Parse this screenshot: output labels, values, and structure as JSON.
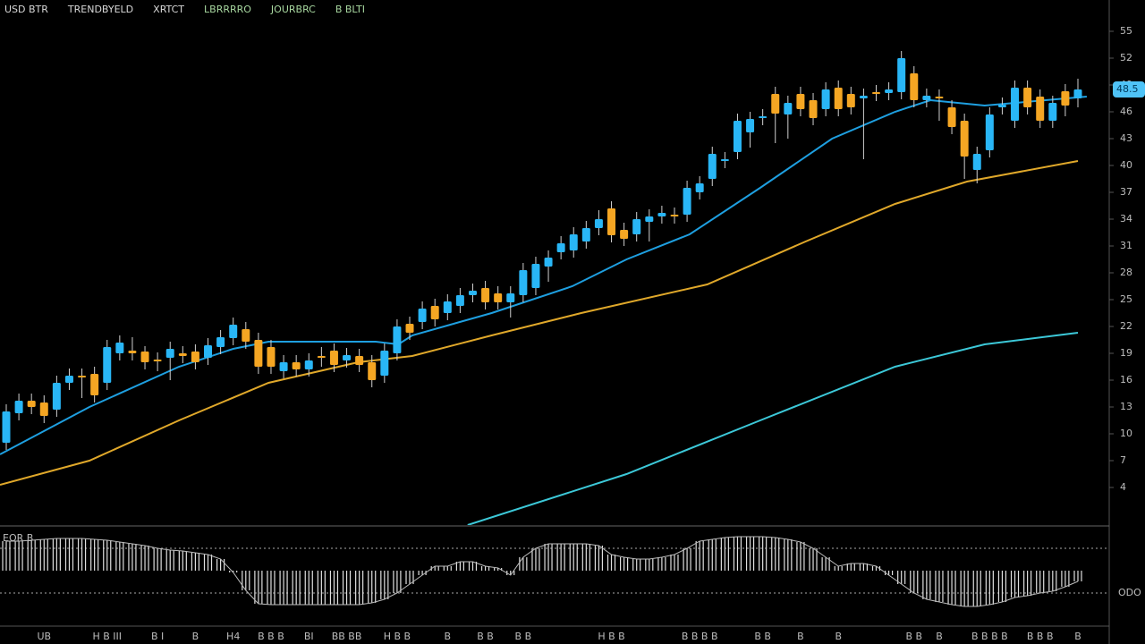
{
  "chart_data": {
    "type": "candlestick",
    "header": [
      {
        "text": "USD BTR",
        "color": "#d8d8d8"
      },
      {
        "text": "TRENDBYELD",
        "color": "#d8d8d8"
      },
      {
        "text": "XRTCT",
        "color": "#d8d8d8"
      },
      {
        "text": "LBRRRRO",
        "color": "#a8d8a0"
      },
      {
        "text": "JOURBRC",
        "color": "#a8d8a0"
      },
      {
        "text": "B BLTI",
        "color": "#a8d8a0"
      }
    ],
    "categories": [
      null,
      null,
      null,
      "UB",
      null,
      null,
      null,
      null,
      "H B III",
      null,
      null,
      null,
      "B I",
      null,
      null,
      "B",
      null,
      null,
      "H4",
      null,
      null,
      "B B B",
      null,
      null,
      "BI",
      null,
      null,
      "BB BB",
      null,
      null,
      null,
      "H B B",
      null,
      null,
      null,
      "B",
      null,
      null,
      "B B",
      null,
      null,
      "B B",
      null,
      null,
      null,
      null,
      null,
      null,
      "H B B",
      null,
      null,
      null,
      null,
      null,
      null,
      "B B B B",
      null,
      null,
      null,
      null,
      "B B",
      null,
      null,
      "B",
      null,
      null,
      "B",
      null,
      null,
      null,
      null,
      null,
      "B B",
      null,
      "B",
      null,
      null,
      null,
      "B B B B",
      null,
      null,
      null,
      "B B B",
      null,
      null,
      "B"
    ],
    "open": [
      9.0,
      12.3,
      13.7,
      13.5,
      12.7,
      15.7,
      16.5,
      16.7,
      15.7,
      19.0,
      19.3,
      19.2,
      18.3,
      18.5,
      19.0,
      19.2,
      18.5,
      19.7,
      20.7,
      21.7,
      20.5,
      19.7,
      17.0,
      18.0,
      17.2,
      18.7,
      19.3,
      18.2,
      18.7,
      18.0,
      16.5,
      19.0,
      22.3,
      22.5,
      24.3,
      23.5,
      24.3,
      25.5,
      26.3,
      25.7,
      24.7,
      25.5,
      26.3,
      28.7,
      30.3,
      30.5,
      31.5,
      33.0,
      35.2,
      32.8,
      32.3,
      33.7,
      34.3,
      34.5,
      34.5,
      37.0,
      38.5,
      40.5,
      41.5,
      43.7,
      45.3,
      48.0,
      45.7,
      48.0,
      47.3,
      46.3,
      48.7,
      48.0,
      47.5,
      48.2,
      48.1,
      48.2,
      50.3,
      47.3,
      47.7,
      46.5,
      45.0,
      39.5,
      41.7,
      46.5,
      45.0,
      48.7,
      47.7,
      45.0,
      48.3,
      47.5
    ],
    "high": [
      13.3,
      14.5,
      14.5,
      14.3,
      16.5,
      17.3,
      17.3,
      17.5,
      20.5,
      21.0,
      20.8,
      19.8,
      19.1,
      20.3,
      19.8,
      20.0,
      20.7,
      21.6,
      23.0,
      22.5,
      21.3,
      20.5,
      18.8,
      18.8,
      19.0,
      19.7,
      20.1,
      19.6,
      19.5,
      18.8,
      20.1,
      22.8,
      23.1,
      24.8,
      25.1,
      25.6,
      26.3,
      26.8,
      27.1,
      26.5,
      26.5,
      29.1,
      29.8,
      30.5,
      32.1,
      33.1,
      33.8,
      35.0,
      36.0,
      33.6,
      34.8,
      35.1,
      35.5,
      35.3,
      38.3,
      38.8,
      42.1,
      41.5,
      45.8,
      46.0,
      46.3,
      48.8,
      47.8,
      48.8,
      48.1,
      49.3,
      49.5,
      48.8,
      48.6,
      49.0,
      49.3,
      52.8,
      51.1,
      48.6,
      48.5,
      47.3,
      45.8,
      42.1,
      46.5,
      47.6,
      49.5,
      49.5,
      48.5,
      47.8,
      49.1,
      49.7
    ],
    "low": [
      8.2,
      11.5,
      12.2,
      11.2,
      11.9,
      14.9,
      14.0,
      13.5,
      14.9,
      18.2,
      18.2,
      17.2,
      17.0,
      16.0,
      17.9,
      17.2,
      17.7,
      18.9,
      19.9,
      19.5,
      16.7,
      16.7,
      16.2,
      16.4,
      16.4,
      17.5,
      16.9,
      17.4,
      16.9,
      15.2,
      15.7,
      18.2,
      20.5,
      21.7,
      22.0,
      22.7,
      23.5,
      24.7,
      23.9,
      23.9,
      23.0,
      24.7,
      25.5,
      27.0,
      29.5,
      29.7,
      30.7,
      32.2,
      31.4,
      31.0,
      31.5,
      31.5,
      33.5,
      33.5,
      33.7,
      36.2,
      37.7,
      39.7,
      40.7,
      42.0,
      44.5,
      42.5,
      43.0,
      45.5,
      44.5,
      45.5,
      45.5,
      45.7,
      40.7,
      47.2,
      47.3,
      47.4,
      46.5,
      46.5,
      45.0,
      43.5,
      38.5,
      38.0,
      40.9,
      45.7,
      44.2,
      45.7,
      44.2,
      44.2,
      45.5,
      46.5
    ],
    "close": [
      12.5,
      13.7,
      13.0,
      12.0,
      15.7,
      16.5,
      16.3,
      14.3,
      19.7,
      20.2,
      19.0,
      18.0,
      18.1,
      19.5,
      18.7,
      18.0,
      19.9,
      20.8,
      22.2,
      20.3,
      17.5,
      17.5,
      18.0,
      17.2,
      18.2,
      18.5,
      17.7,
      18.8,
      17.7,
      16.0,
      19.3,
      22.0,
      21.3,
      24.0,
      22.8,
      24.8,
      25.5,
      26.0,
      24.7,
      24.7,
      25.7,
      28.3,
      29.0,
      29.7,
      31.3,
      32.3,
      33.0,
      34.0,
      32.2,
      31.8,
      34.0,
      34.3,
      34.7,
      34.3,
      37.5,
      38.0,
      41.3,
      40.7,
      45.0,
      45.2,
      45.5,
      45.8,
      47.0,
      46.3,
      45.3,
      48.5,
      46.3,
      46.5,
      47.8,
      48.0,
      48.5,
      52.0,
      47.3,
      47.8,
      47.5,
      44.3,
      41.0,
      41.3,
      45.7,
      46.8,
      48.7,
      46.5,
      45.0,
      47.0,
      46.7,
      48.5
    ],
    "up_color": "#29b6f6",
    "down_color": "#f5a623",
    "overlays": [
      {
        "color": "#1e9fe0",
        "x": [
          -0.5,
          6.6,
          13.7,
          18.0,
          20.8,
          29.3,
          31.1,
          32.2,
          38.5,
          44.9,
          49.2,
          54.2,
          59.8,
          65.5,
          70.5,
          73.3,
          77.6,
          85.7
        ],
        "values": [
          7.7,
          13.0,
          17.5,
          19.5,
          20.3,
          20.3,
          20.0,
          21.0,
          23.5,
          26.5,
          29.5,
          32.3,
          37.5,
          43.0,
          46.0,
          47.3,
          46.7,
          47.7
        ]
      },
      {
        "color": "#e0a82a",
        "x": [
          -0.5,
          6.6,
          13.7,
          20.8,
          27.9,
          32.2,
          38.5,
          45.6,
          55.6,
          63.4,
          70.5,
          76.2,
          85.0
        ],
        "values": [
          4.3,
          7.0,
          11.5,
          15.7,
          18.0,
          18.7,
          21.0,
          23.5,
          26.7,
          31.5,
          35.7,
          38.2,
          40.5
        ]
      },
      {
        "color": "#3cc8d8",
        "x": [
          36.6,
          49.2,
          59.8,
          70.5,
          77.6,
          85.0
        ],
        "values": [
          -0.2,
          5.5,
          11.5,
          17.5,
          20.0,
          21.3
        ]
      }
    ],
    "ylim": [
      0,
      58.5
    ],
    "yticks": [
      4,
      7,
      10,
      13,
      16,
      19,
      22,
      25,
      28,
      31,
      34,
      37,
      40,
      43,
      46,
      49,
      52,
      55
    ],
    "last_price": 48.5,
    "indicator": {
      "type": "histogram",
      "label": "EOR B",
      "values": [
        3.3,
        3.3,
        3.4,
        3.5,
        3.6,
        3.6,
        3.6,
        3.5,
        3.4,
        3.2,
        3.0,
        2.8,
        2.5,
        2.3,
        2.2,
        2.0,
        1.8,
        1.3,
        -0.2,
        -2.2,
        -3.7,
        -3.8,
        -3.8,
        -3.8,
        -3.8,
        -3.8,
        -3.8,
        -3.8,
        -3.8,
        -3.6,
        -3.2,
        -2.5,
        -1.5,
        -0.5,
        0.5,
        0.5,
        1.0,
        1.0,
        0.5,
        0.3,
        -0.5,
        1.5,
        2.5,
        3.0,
        3.0,
        3.0,
        3.0,
        2.8,
        1.8,
        1.5,
        1.3,
        1.3,
        1.5,
        1.8,
        2.5,
        3.3,
        3.5,
        3.7,
        3.8,
        3.8,
        3.8,
        3.7,
        3.5,
        3.2,
        2.5,
        1.5,
        0.5,
        0.8,
        0.8,
        0.5,
        -0.5,
        -1.5,
        -2.5,
        -3.2,
        -3.5,
        -3.8,
        -4.0,
        -4.0,
        -3.8,
        -3.5,
        -3.0,
        -2.8,
        -2.5,
        -2.3,
        -1.8,
        -1.2
      ],
      "ylim": [
        -5,
        5
      ],
      "levels": [
        2.5,
        -2.5
      ],
      "level_label": "ODO"
    }
  }
}
